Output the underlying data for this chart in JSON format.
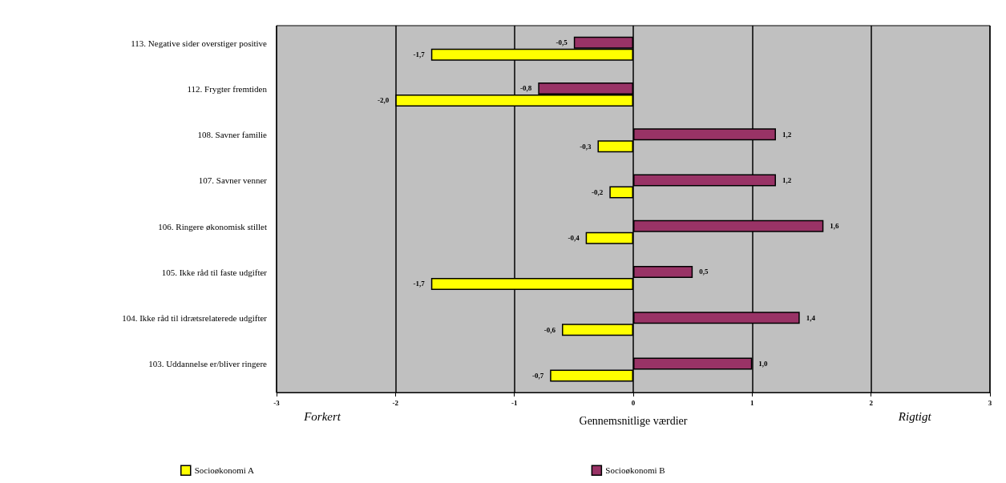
{
  "chart_data": {
    "type": "bar",
    "orientation": "horizontal",
    "xlabel": "Gennemsnitlige værdier",
    "categories": [
      "113. Negative sider overstiger positive",
      "112. Frygter fremtiden",
      "108. Savner familie",
      "107. Savner venner",
      "106. Ringere økonomisk stillet",
      "105. Ikke råd til faste udgifter",
      "104. Ikke råd til idrætsrelaterede udgifter",
      "103. Uddannelse er/bliver ringere"
    ],
    "series": [
      {
        "name": "Socioøkonomi A",
        "color": "#ffff00",
        "values": [
          -1.7,
          -2.0,
          -0.3,
          -0.2,
          -0.4,
          -1.7,
          -0.6,
          -0.7
        ],
        "value_labels": [
          "-1,7",
          "-2,0",
          "-0,3",
          "-0,2",
          "-0,4",
          "-1,7",
          "-0,6",
          "-0,7"
        ]
      },
      {
        "name": "Socioøkonomi B",
        "color": "#993366",
        "values": [
          -0.5,
          -0.8,
          1.2,
          1.2,
          1.6,
          0.5,
          1.4,
          1.0
        ],
        "value_labels": [
          "-0,5",
          "-0,8",
          "1,2",
          "1,2",
          "1,6",
          "0,5",
          "1,4",
          "1,0"
        ]
      }
    ],
    "xlim": [
      -3,
      3
    ],
    "xticks": [
      -3,
      -2,
      -1,
      0,
      1,
      2,
      3
    ],
    "grid": "x",
    "legend": "bottom",
    "annotations": [
      "Forkert",
      "Rigtigt"
    ]
  }
}
